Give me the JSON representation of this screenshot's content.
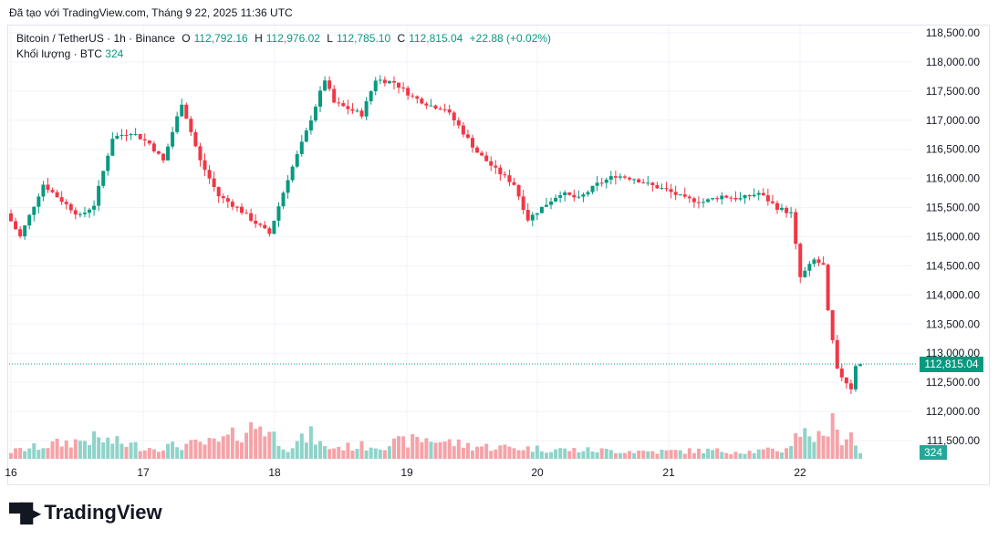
{
  "header": {
    "stamp": "Đã tạo với TradingView.com, Tháng 9 22, 2025 11:36 UTC"
  },
  "legend": {
    "symbol": "Bitcoin / TetherUS · 1h · Binance",
    "open_label": "O",
    "open": "112,792.16",
    "high_label": "H",
    "high": "112,976.02",
    "low_label": "L",
    "low": "112,785.10",
    "close_label": "C",
    "close": "112,815.04",
    "change": "+22.88 (+0.02%)",
    "volume_label": "Khối lượng · BTC",
    "volume_value": "324"
  },
  "brand": {
    "name": "TradingView"
  },
  "colors": {
    "up": "#089981",
    "down": "#f23645",
    "vol_up": "#8fd3c9",
    "vol_down": "#f5a3a8",
    "grid": "#f0f3fa"
  },
  "chart_data": {
    "type": "candlestick",
    "y_axis": {
      "ticks": [
        "118,500.00",
        "118,000.00",
        "117,500.00",
        "117,000.00",
        "116,500.00",
        "116,000.00",
        "115,500.00",
        "115,000.00",
        "114,500.00",
        "114,000.00",
        "113,500.00",
        "113,000.00",
        "112,500.00",
        "112,000.00",
        "111,500.00"
      ],
      "range": [
        111300,
        118700
      ]
    },
    "x_axis": {
      "ticks": [
        "16",
        "17",
        "18",
        "19",
        "20",
        "21",
        "22"
      ]
    },
    "last_price": "112,815.04",
    "last_volume": "324",
    "anchors": [
      [
        0,
        115400
      ],
      [
        3,
        115000
      ],
      [
        8,
        115900
      ],
      [
        13,
        115550
      ],
      [
        16,
        115350
      ],
      [
        19,
        115550
      ],
      [
        23,
        116700
      ],
      [
        27,
        116800
      ],
      [
        31,
        116600
      ],
      [
        34,
        116300
      ],
      [
        38,
        117300
      ],
      [
        42,
        116300
      ],
      [
        46,
        115700
      ],
      [
        50,
        115500
      ],
      [
        53,
        115300
      ],
      [
        57,
        115050
      ],
      [
        61,
        116000
      ],
      [
        65,
        116800
      ],
      [
        69,
        117700
      ],
      [
        71,
        117300
      ],
      [
        74,
        117200
      ],
      [
        77,
        117100
      ],
      [
        80,
        117700
      ],
      [
        84,
        117650
      ],
      [
        88,
        117400
      ],
      [
        92,
        117250
      ],
      [
        95,
        117200
      ],
      [
        98,
        116900
      ],
      [
        102,
        116450
      ],
      [
        106,
        116150
      ],
      [
        110,
        115900
      ],
      [
        113,
        115300
      ],
      [
        116,
        115500
      ],
      [
        120,
        115750
      ],
      [
        124,
        115650
      ],
      [
        128,
        115900
      ],
      [
        132,
        116050
      ],
      [
        136,
        116000
      ],
      [
        139,
        115900
      ],
      [
        143,
        115800
      ],
      [
        147,
        115650
      ],
      [
        151,
        115600
      ],
      [
        155,
        115700
      ],
      [
        159,
        115650
      ],
      [
        163,
        115750
      ],
      [
        167,
        115500
      ],
      [
        170,
        115400
      ],
      [
        172,
        114300
      ],
      [
        175,
        114600
      ],
      [
        177,
        114500
      ],
      [
        178,
        113700
      ],
      [
        180,
        112700
      ],
      [
        182,
        112500
      ],
      [
        183,
        112400
      ],
      [
        184,
        112800
      ]
    ],
    "volume_anchors": [
      [
        0,
        8
      ],
      [
        8,
        15
      ],
      [
        18,
        22
      ],
      [
        30,
        12
      ],
      [
        45,
        18
      ],
      [
        54,
        38
      ],
      [
        60,
        12
      ],
      [
        65,
        26
      ],
      [
        68,
        12
      ],
      [
        80,
        15
      ],
      [
        90,
        22
      ],
      [
        100,
        14
      ],
      [
        110,
        12
      ],
      [
        120,
        10
      ],
      [
        130,
        9
      ],
      [
        140,
        8
      ],
      [
        150,
        9
      ],
      [
        160,
        8
      ],
      [
        168,
        10
      ],
      [
        170,
        30
      ],
      [
        174,
        25
      ],
      [
        176,
        20
      ],
      [
        178,
        60
      ],
      [
        180,
        15
      ],
      [
        182,
        28
      ],
      [
        184,
        8
      ]
    ]
  }
}
